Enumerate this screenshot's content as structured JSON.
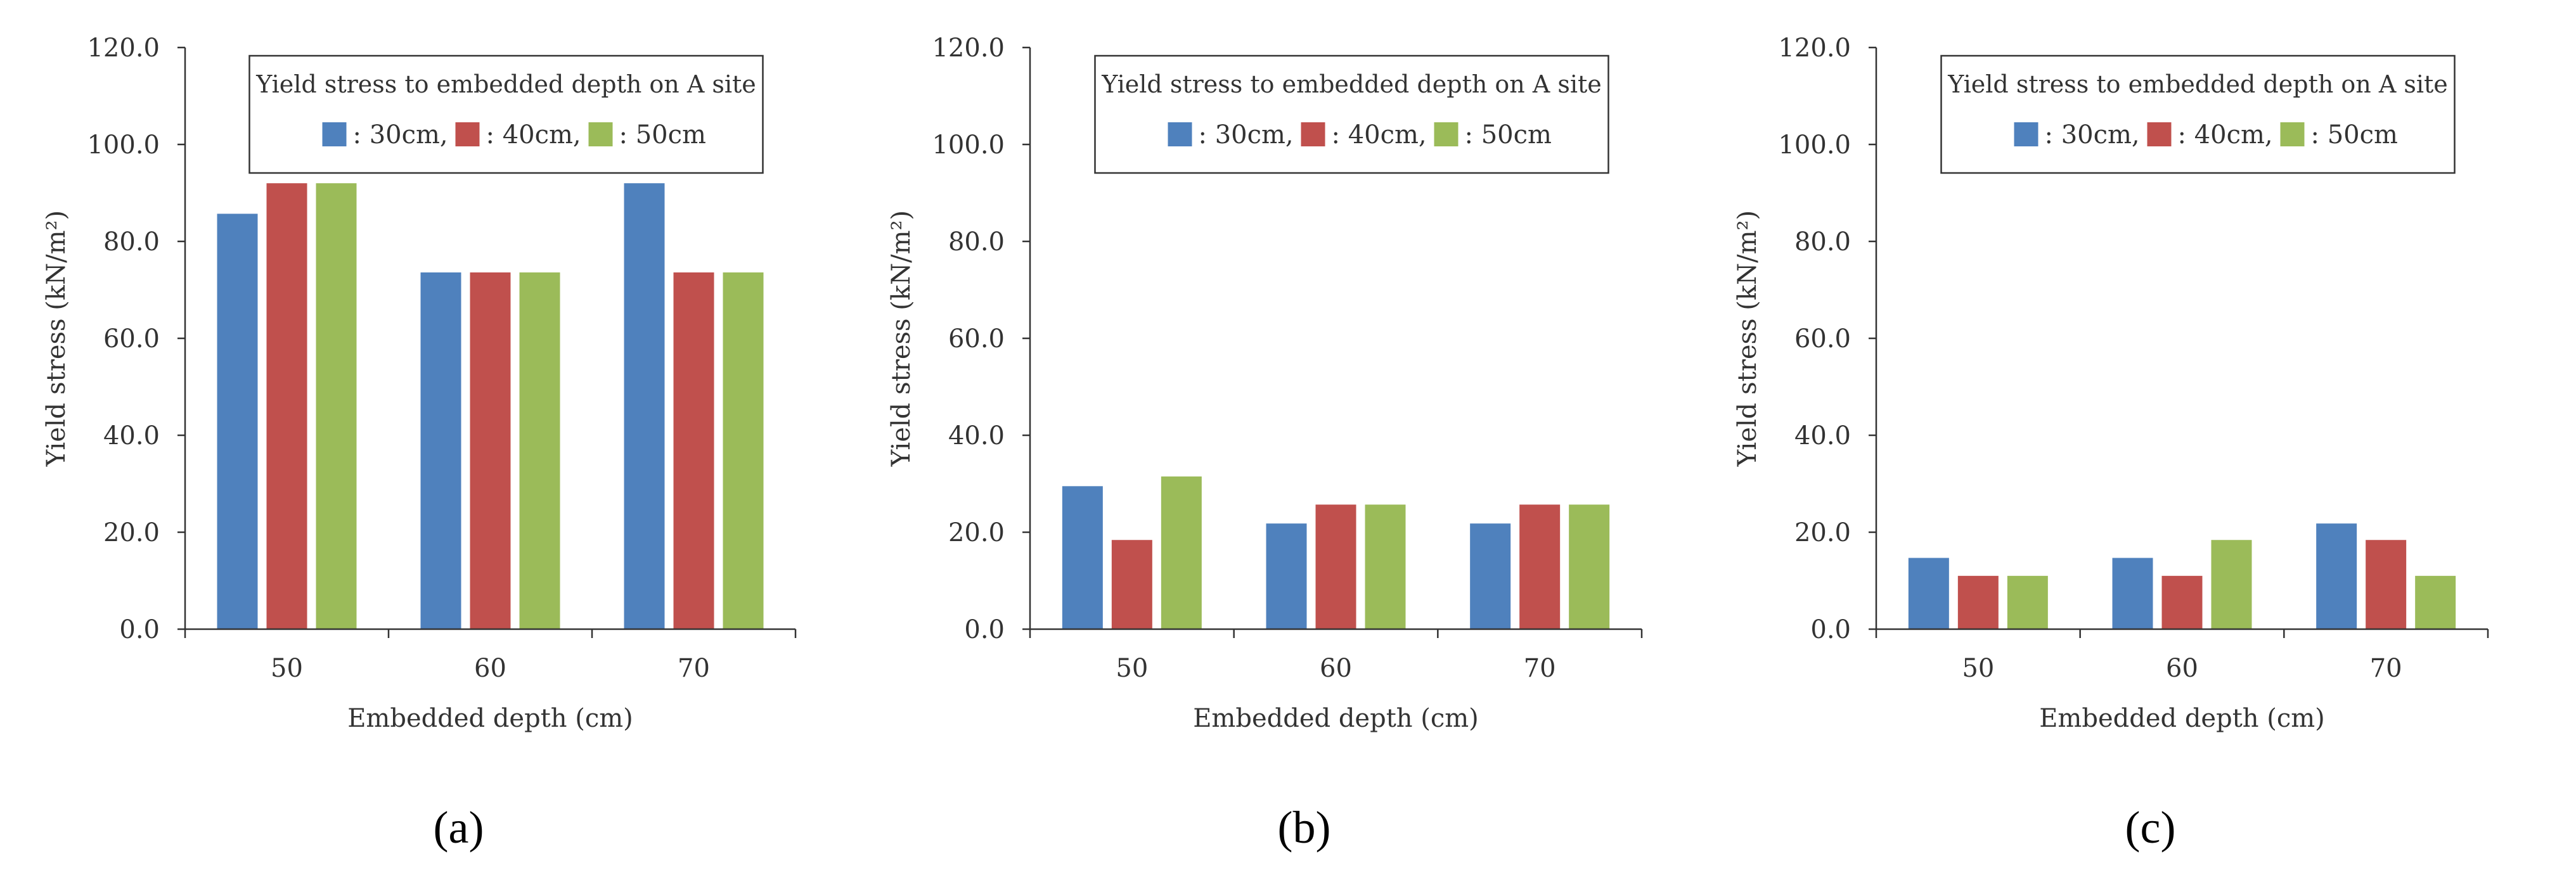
{
  "colors": {
    "series": [
      "#4F81BD",
      "#C0504D",
      "#9BBB59"
    ],
    "axis": "#333333",
    "text": "#333333"
  },
  "chart_data": [
    {
      "type": "bar",
      "panel_label": "(a)",
      "title": "Yield stress to embedded depth on A site",
      "xlabel": "Embedded depth (cm)",
      "ylabel": "Yield stress (kN/m²)",
      "ylim": [
        0,
        120
      ],
      "ytick_step": 20,
      "ytick_labels": [
        "0.0",
        "20.0",
        "40.0",
        "60.0",
        "80.0",
        "100.0",
        "120.0"
      ],
      "categories": [
        "50",
        "60",
        "70"
      ],
      "legend_position": "top-center",
      "grid": false,
      "series": [
        {
          "name": ": 30cm,",
          "values": [
            85.7,
            73.6,
            92.0
          ]
        },
        {
          "name": ": 40cm,",
          "values": [
            92.0,
            73.6,
            73.6
          ]
        },
        {
          "name": ": 50cm",
          "values": [
            92.0,
            73.6,
            73.6
          ]
        }
      ]
    },
    {
      "type": "bar",
      "panel_label": "(b)",
      "title": "Yield stress to embedded depth on A site",
      "xlabel": "Embedded depth (cm)",
      "ylabel": "Yield stress (kN/m²)",
      "ylim": [
        0,
        120
      ],
      "ytick_step": 20,
      "ytick_labels": [
        "0.0",
        "20.0",
        "40.0",
        "60.0",
        "80.0",
        "100.0",
        "120.0"
      ],
      "categories": [
        "50",
        "60",
        "70"
      ],
      "legend_position": "top-center",
      "grid": false,
      "series": [
        {
          "name": ": 30cm,",
          "values": [
            29.5,
            21.8,
            21.8
          ]
        },
        {
          "name": ": 40cm,",
          "values": [
            18.4,
            25.7,
            25.7
          ]
        },
        {
          "name": ": 50cm",
          "values": [
            31.5,
            25.7,
            25.7
          ]
        }
      ]
    },
    {
      "type": "bar",
      "panel_label": "(c)",
      "title": "Yield stress to embedded depth on A site",
      "xlabel": "Embedded depth (cm)",
      "ylabel": "Yield stress (kN/m²)",
      "ylim": [
        0,
        120
      ],
      "ytick_step": 20,
      "ytick_labels": [
        "0.0",
        "20.0",
        "40.0",
        "60.0",
        "80.0",
        "100.0",
        "120.0"
      ],
      "categories": [
        "50",
        "60",
        "70"
      ],
      "legend_position": "top-center",
      "grid": false,
      "series": [
        {
          "name": ": 30cm,",
          "values": [
            14.7,
            14.7,
            21.8
          ]
        },
        {
          "name": ": 40cm,",
          "values": [
            11.0,
            11.0,
            18.4
          ]
        },
        {
          "name": ": 50cm",
          "values": [
            11.0,
            18.4,
            11.0
          ]
        }
      ]
    }
  ]
}
